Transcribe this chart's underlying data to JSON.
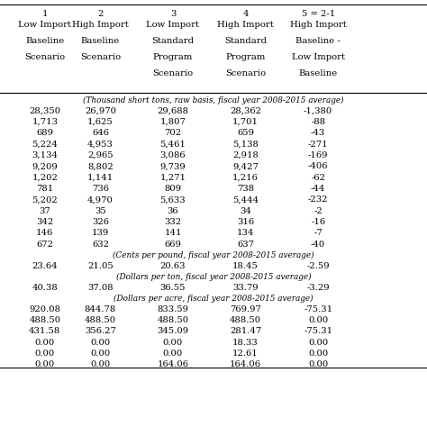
{
  "header_row1": [
    "1",
    "2",
    "3",
    "4",
    "5 = 2-1",
    ""
  ],
  "header_row2_col1": [
    "Low Import",
    "Baseline",
    "Scenario"
  ],
  "header_row2_col2": [
    "High Import",
    "Baseline",
    "Scenario"
  ],
  "header_row2_col3": [
    "Low Import",
    "Standard",
    "Program",
    "Scenario"
  ],
  "header_row2_col4": [
    "High Import",
    "Standard",
    "Program",
    "Scenario"
  ],
  "header_row2_col5": [
    "High Import",
    "Baseline -",
    "Low Import",
    "Baseline"
  ],
  "header_row2_col6": [
    ""
  ],
  "section_label_1": "(Thousand short tons, raw basis, fiscal year 2008-2015 average)",
  "section_rows_1": [
    [
      "28,350",
      "26,970",
      "29,688",
      "28,362",
      "-1,380"
    ],
    [
      "1,713",
      "1,625",
      "1,807",
      "1,701",
      "-88"
    ],
    [
      "689",
      "646",
      "702",
      "659",
      "-43"
    ],
    [
      "5,224",
      "4,953",
      "5,461",
      "5,138",
      "-271"
    ],
    [
      "3,134",
      "2,965",
      "3,086",
      "2,918",
      "-169"
    ],
    [
      "9,209",
      "8,802",
      "9,739",
      "9,427",
      "-406"
    ],
    [
      "1,202",
      "1,141",
      "1,271",
      "1,216",
      "-62"
    ],
    [
      "781",
      "736",
      "809",
      "738",
      "-44"
    ],
    [
      "5,202",
      "4,970",
      "5,633",
      "5,444",
      "-232"
    ],
    [
      "37",
      "35",
      "36",
      "34",
      "-2"
    ],
    [
      "342",
      "326",
      "332",
      "316",
      "-16"
    ],
    [
      "146",
      "139",
      "141",
      "134",
      "-7"
    ],
    [
      "672",
      "632",
      "669",
      "637",
      "-40"
    ]
  ],
  "section_label_2": "(Cents per pound, fiscal year 2008-2015 average)",
  "section_rows_2": [
    [
      "23.64",
      "21.05",
      "20.63",
      "18.45",
      "-2.59"
    ]
  ],
  "section_label_3": "(Dollars per ton, fiscal year 2008-2015 average)",
  "section_rows_3": [
    [
      "40.38",
      "37.08",
      "36.55",
      "33.79",
      "-3.29"
    ]
  ],
  "section_label_4": "(Dollars per acre, fiscal year 2008-2015 average)",
  "section_rows_4": [
    [
      "920.08",
      "844.78",
      "833.59",
      "769.97",
      "-75.31"
    ],
    [
      "488.50",
      "488.50",
      "488.50",
      "488.50",
      "0.00"
    ],
    [
      "431.58",
      "356.27",
      "345.09",
      "281.47",
      "-75.31"
    ],
    [
      "0.00",
      "0.00",
      "0.00",
      "18.33",
      "0.00"
    ],
    [
      "0.00",
      "0.00",
      "0.00",
      "12.61",
      "0.00"
    ],
    [
      "0.00",
      "0.00",
      "164.06",
      "164.06",
      "0.00"
    ]
  ],
  "bg_color": "#ffffff",
  "text_color": "#000000",
  "font_size": 7.2,
  "line_color": "#888888"
}
